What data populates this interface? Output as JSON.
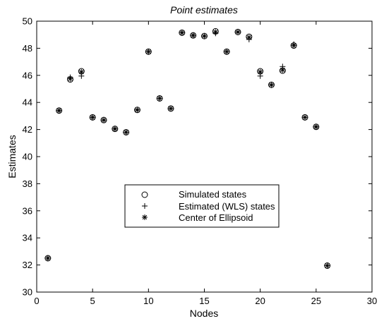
{
  "chart_data": {
    "type": "scatter",
    "title": "Point estimates",
    "xlabel": "Nodes",
    "ylabel": "Estimates",
    "xlim": [
      0,
      30
    ],
    "ylim": [
      30,
      50
    ],
    "xticks": [
      0,
      5,
      10,
      15,
      20,
      25,
      30
    ],
    "yticks": [
      30,
      32,
      34,
      36,
      38,
      40,
      42,
      44,
      46,
      48,
      50
    ],
    "grid": false,
    "legend_position": "center",
    "x": [
      1,
      2,
      3,
      4,
      5,
      6,
      7,
      8,
      9,
      10,
      11,
      12,
      13,
      14,
      15,
      16,
      17,
      18,
      19,
      20,
      21,
      22,
      23,
      24,
      25,
      26
    ],
    "series": [
      {
        "name": "Simulated states",
        "marker": "circle",
        "values": [
          32.5,
          43.4,
          45.7,
          46.3,
          42.9,
          42.7,
          42.05,
          41.8,
          43.45,
          47.75,
          44.3,
          43.55,
          49.15,
          48.95,
          48.9,
          49.25,
          47.75,
          49.2,
          48.85,
          46.3,
          45.3,
          46.35,
          48.2,
          42.9,
          42.2,
          31.95
        ]
      },
      {
        "name": "Estimated (WLS) states",
        "marker": "plus",
        "values": [
          32.5,
          43.4,
          45.85,
          45.95,
          42.9,
          42.7,
          42.05,
          41.8,
          43.45,
          47.75,
          44.3,
          43.55,
          49.15,
          48.95,
          48.9,
          49.1,
          47.75,
          49.2,
          48.65,
          45.95,
          45.3,
          46.65,
          48.3,
          42.9,
          42.2,
          31.95
        ]
      },
      {
        "name": "Center of Ellipsoid",
        "marker": "asterisk",
        "values": [
          32.5,
          43.4,
          45.75,
          46.25,
          42.9,
          42.7,
          42.05,
          41.8,
          43.45,
          47.75,
          44.3,
          43.55,
          49.15,
          48.95,
          48.9,
          49.2,
          47.75,
          49.2,
          48.8,
          46.25,
          45.3,
          46.4,
          48.2,
          42.9,
          42.2,
          31.95
        ]
      }
    ]
  }
}
